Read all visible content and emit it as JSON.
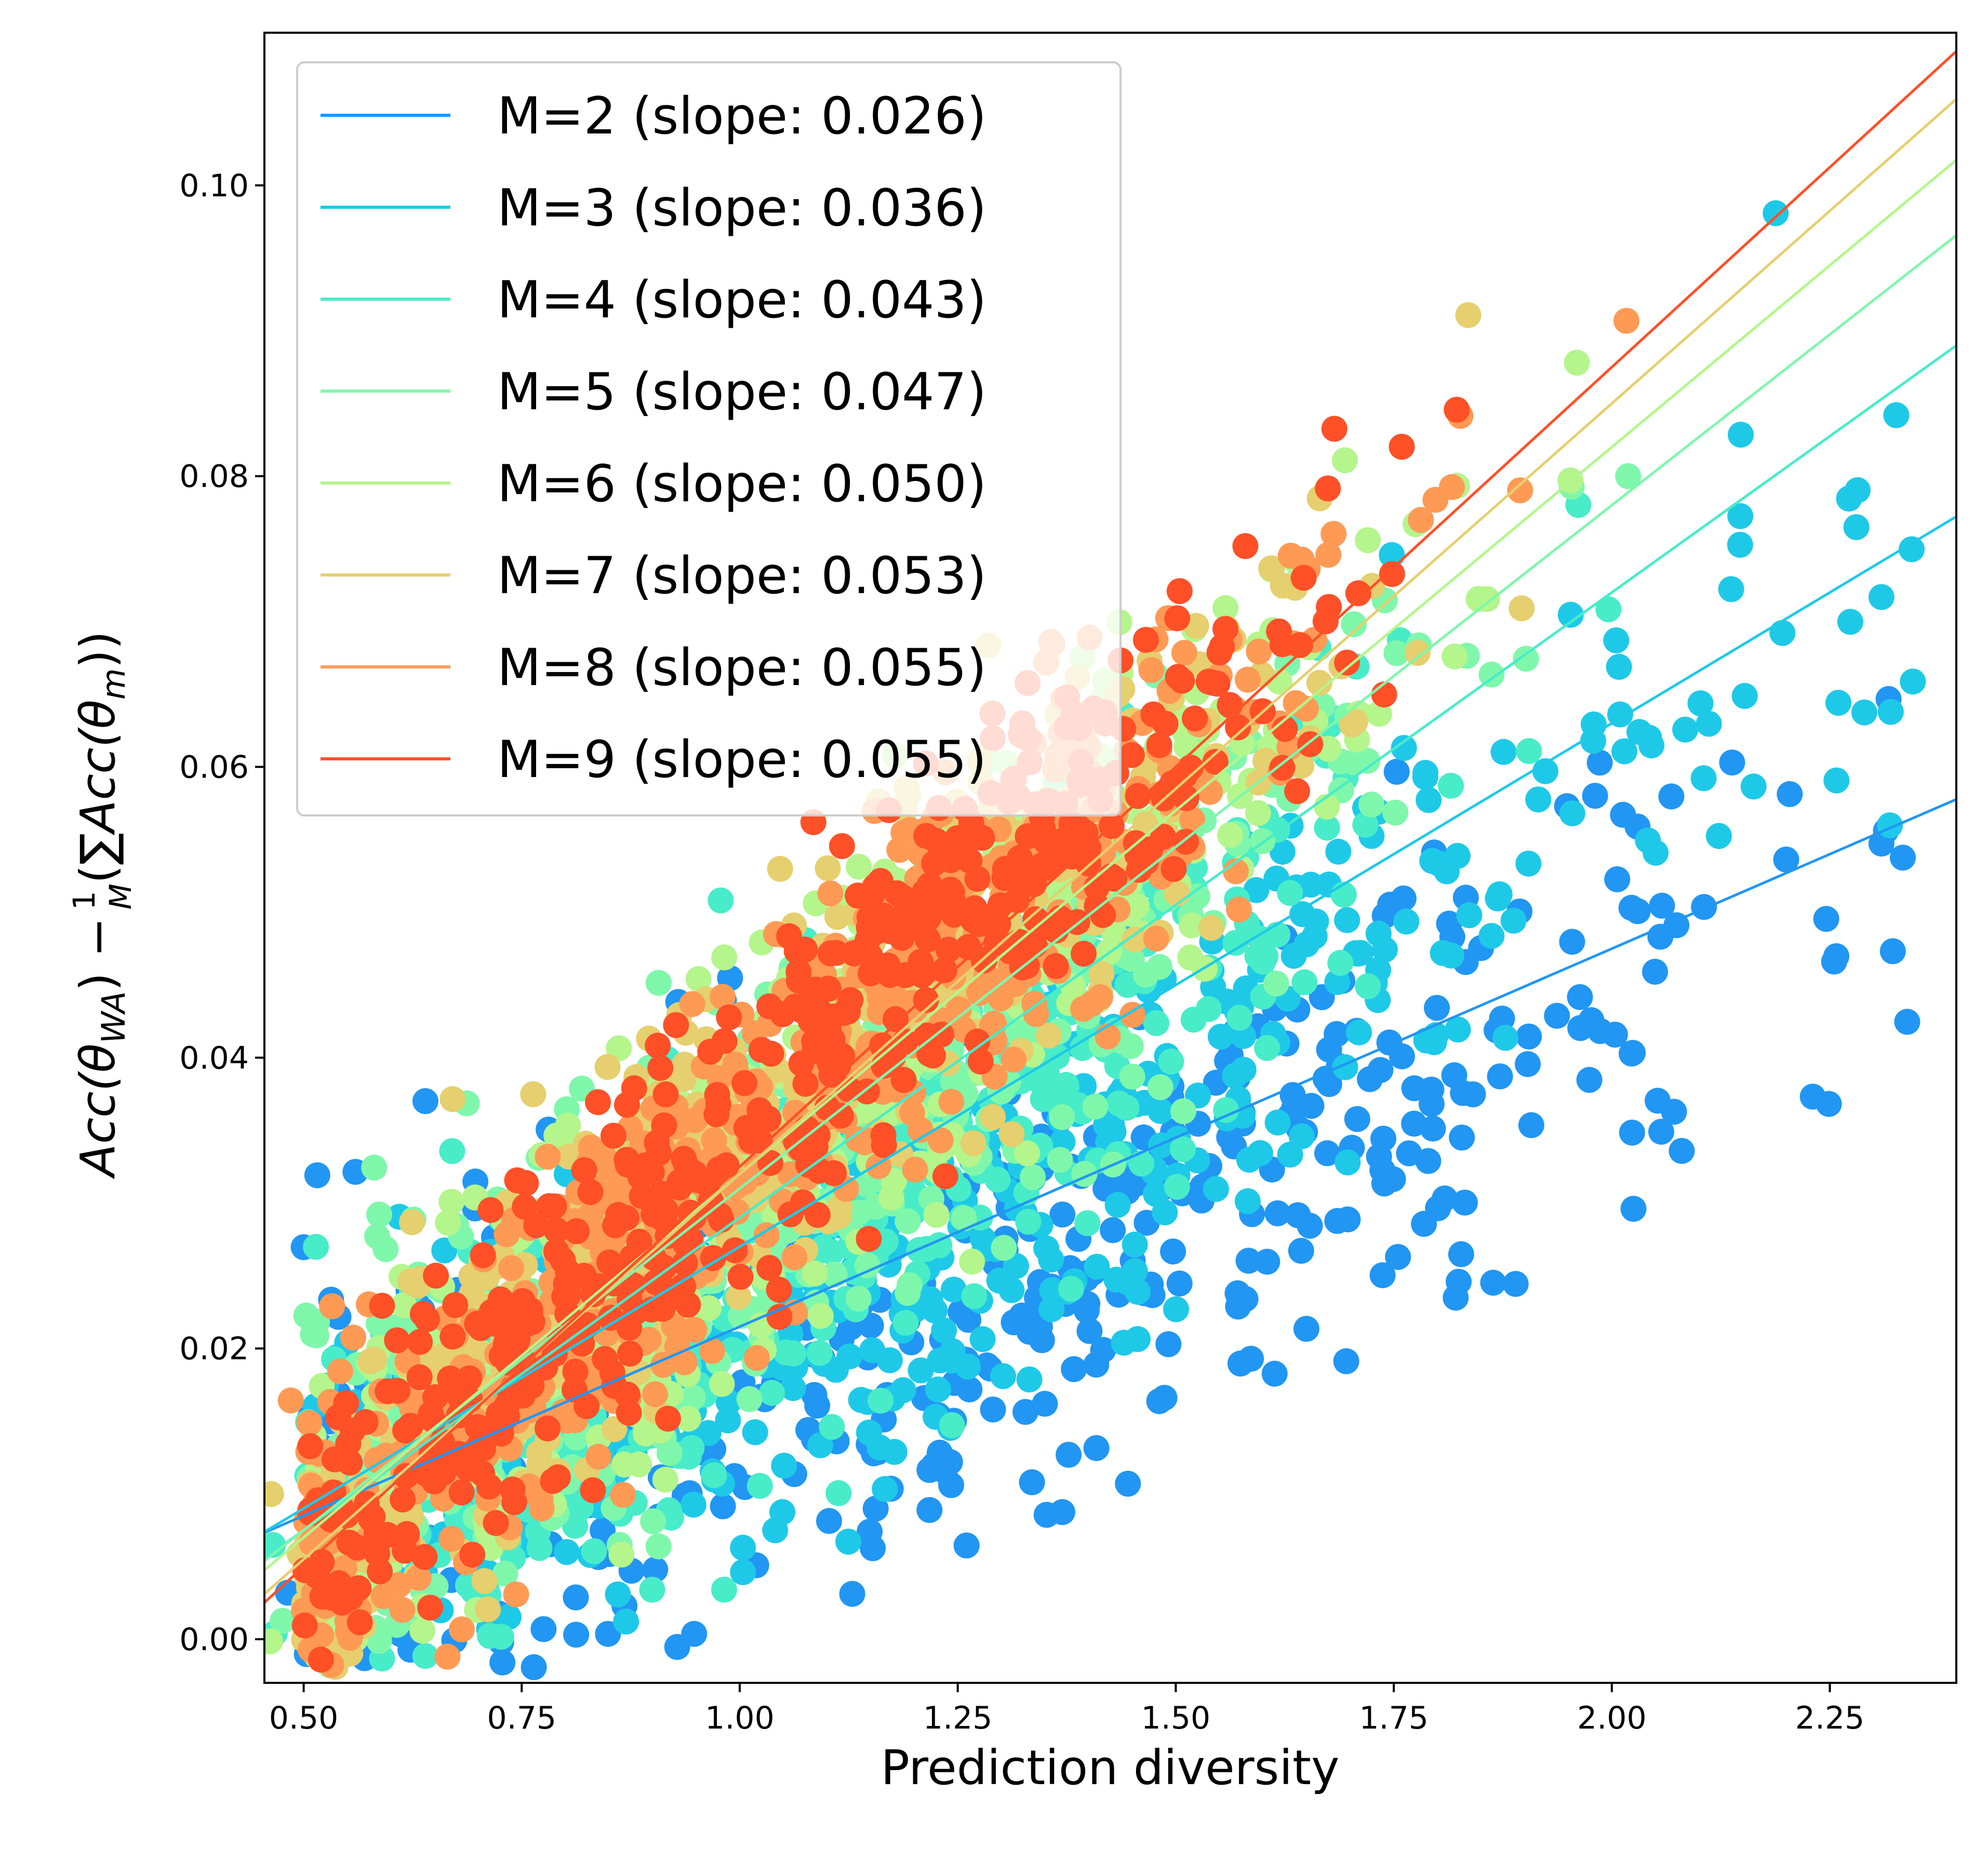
{
  "chart_data": {
    "type": "scatter",
    "xlabel": "Prediction diversity",
    "ylabel": {
      "lhs": "Acc(θ",
      "lhs_sub": "WA",
      "minus": ") −",
      "frac_num": "1",
      "frac_den": "M",
      "sum": "(∑",
      "rhs": "Acc(θ",
      "rhs_sub": "m",
      "close": "))"
    },
    "xlim": [
      0.455,
      2.395
    ],
    "ylim": [
      -0.003,
      0.1105
    ],
    "xticks": [
      0.5,
      0.75,
      1.0,
      1.25,
      1.5,
      1.75,
      2.0,
      2.25
    ],
    "xtick_labels": [
      "0.50",
      "0.75",
      "1.00",
      "1.25",
      "1.50",
      "1.75",
      "2.00",
      "2.25"
    ],
    "yticks": [
      0.0,
      0.02,
      0.04,
      0.06,
      0.08,
      0.1
    ],
    "ytick_labels": [
      "0.00",
      "0.02",
      "0.04",
      "0.06",
      "0.08",
      "0.10"
    ],
    "legend_position": "top-left",
    "series": [
      {
        "name": "M=2 (slope: 0.026)",
        "M": 2,
        "slope": 0.026,
        "intercept": -0.0045,
        "color": "#2196f3",
        "center": [
          1.35,
          0.026
        ],
        "spread": [
          0.3,
          0.0075
        ],
        "noise": 0.0085,
        "tail": true
      },
      {
        "name": "M=3 (slope: 0.036)",
        "M": 3,
        "slope": 0.036,
        "intercept": -0.009,
        "color": "#1ec9e8",
        "center": [
          1.28,
          0.029
        ],
        "spread": [
          0.28,
          0.007
        ],
        "noise": 0.0075,
        "tail": true
      },
      {
        "name": "M=4 (slope: 0.043)",
        "M": 4,
        "slope": 0.043,
        "intercept": -0.014,
        "color": "#48ecc8",
        "center": [
          1.22,
          0.034
        ],
        "spread": [
          0.27,
          0.0065
        ],
        "noise": 0.007,
        "tail": false
      },
      {
        "name": "M=5 (slope: 0.047)",
        "M": 5,
        "slope": 0.047,
        "intercept": -0.016,
        "color": "#7ff7ab",
        "center": [
          1.2,
          0.039
        ],
        "spread": [
          0.27,
          0.006
        ],
        "noise": 0.0068,
        "tail": false
      },
      {
        "name": "M=6 (slope: 0.050)",
        "M": 6,
        "slope": 0.05,
        "intercept": -0.018,
        "color": "#b4f58c",
        "center": [
          1.18,
          0.042
        ],
        "spread": [
          0.26,
          0.0055
        ],
        "noise": 0.0066,
        "tail": false
      },
      {
        "name": "M=7 (slope: 0.053)",
        "M": 7,
        "slope": 0.053,
        "intercept": -0.021,
        "color": "#e5cf6e",
        "center": [
          1.18,
          0.044
        ],
        "spread": [
          0.26,
          0.0055
        ],
        "noise": 0.0064,
        "tail": false
      },
      {
        "name": "M=8 (slope: 0.055)",
        "M": 8,
        "slope": 0.055,
        "intercept": -0.0225,
        "color": "#ff9a55",
        "center": [
          1.2,
          0.045
        ],
        "spread": [
          0.25,
          0.005
        ],
        "noise": 0.0062,
        "tail": false
      },
      {
        "name": "M=9 (slope: 0.055)",
        "M": 9,
        "slope": 0.055,
        "intercept": -0.0225,
        "color": "#ff5028",
        "center": [
          1.22,
          0.047
        ],
        "spread": [
          0.24,
          0.005
        ],
        "noise": 0.006,
        "tail": false
      }
    ]
  }
}
